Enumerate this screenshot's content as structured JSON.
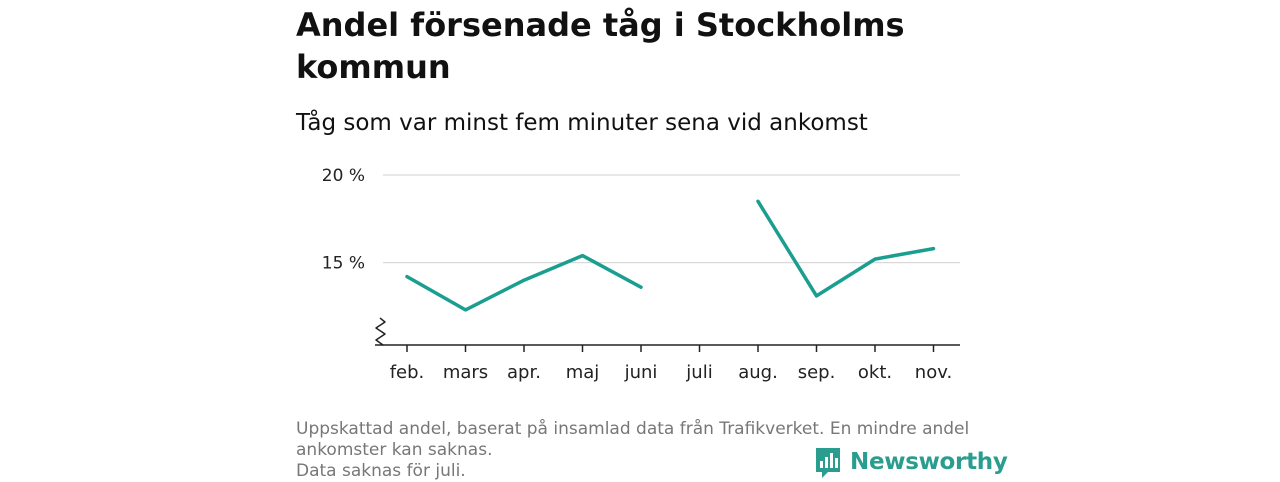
{
  "title": "Andel försenade tåg i Stockholms kommun",
  "subtitle": "Tåg som var minst fem minuter sena vid ankomst",
  "notes": [
    "Uppskattad andel, baserat på insamlad data från Trafikverket. En mindre andel",
    "ankomster kan saknas.",
    "Data saknas för juli."
  ],
  "brand": {
    "name": "Newsworthy",
    "color": "#2a9d8f"
  },
  "colors": {
    "line": "#1a9e8f",
    "grid": "#d9d9d9",
    "axis": "#222222"
  },
  "chart_data": {
    "type": "line",
    "categories": [
      "feb.",
      "mars",
      "apr.",
      "maj",
      "juni",
      "juli",
      "aug.",
      "sep.",
      "okt.",
      "nov."
    ],
    "series": [
      {
        "values": [
          14.2,
          12.3,
          14.0,
          15.4,
          13.6,
          null,
          18.5,
          13.1,
          15.2,
          15.8
        ]
      }
    ],
    "yticks": [
      {
        "value": 15,
        "label": "15 %"
      },
      {
        "value": 20,
        "label": "20 %"
      }
    ],
    "ylim": [
      10.3,
      20
    ],
    "y_axis_break": true,
    "grid": true
  }
}
